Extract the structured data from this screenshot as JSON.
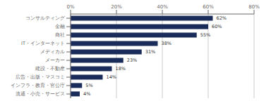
{
  "chart_data": {
    "type": "bar",
    "orientation": "horizontal",
    "categories": [
      "流通・小売・サービス",
      "インフラ・教育・官公庁",
      "広告・出版・マスコミ",
      "建設・不動産",
      "メーカー",
      "メディカル",
      "IT・インターネット",
      "商社",
      "金融",
      "コンサルティング"
    ],
    "values": [
      4,
      5,
      14,
      18,
      23,
      31,
      38,
      55,
      60,
      62
    ],
    "value_labels": [
      "4%",
      "5%",
      "14%",
      "18%",
      "23%",
      "31%",
      "38%",
      "55%",
      "60%",
      "62%"
    ],
    "data_labels": true,
    "color": "#1a2d5a",
    "xlim": [
      0,
      80
    ],
    "xticks": [
      {
        "value": 0,
        "label": "0%"
      },
      {
        "value": 20,
        "label": "20%"
      },
      {
        "value": 40,
        "label": "40%"
      },
      {
        "value": 60,
        "label": "60%"
      },
      {
        "value": 80,
        "label": "80%"
      }
    ],
    "grid": true
  }
}
